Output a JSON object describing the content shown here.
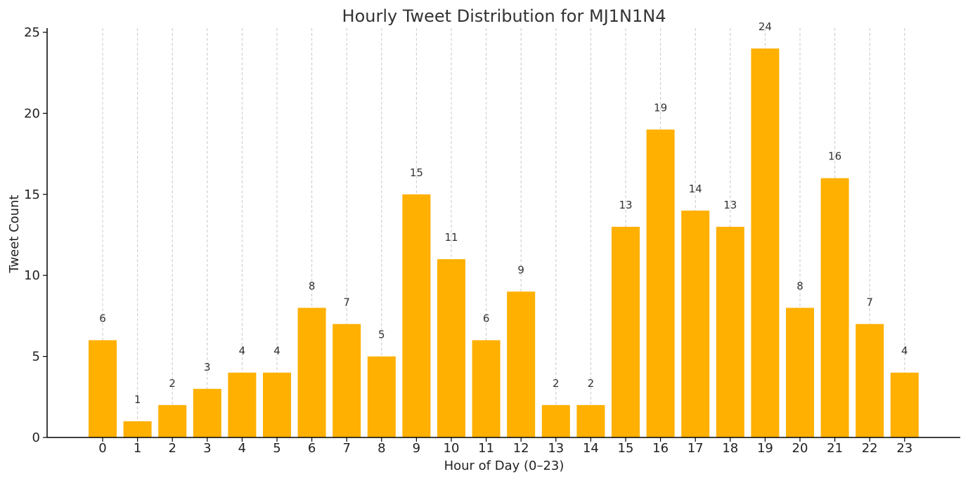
{
  "chart_data": {
    "type": "bar",
    "title": "Hourly Tweet Distribution for MJ1N1N4",
    "xlabel": "Hour of Day (0–23)",
    "ylabel": "Tweet Count",
    "categories": [
      "0",
      "1",
      "2",
      "3",
      "4",
      "5",
      "6",
      "7",
      "8",
      "9",
      "10",
      "11",
      "12",
      "13",
      "14",
      "15",
      "16",
      "17",
      "18",
      "19",
      "20",
      "21",
      "22",
      "23"
    ],
    "values": [
      6,
      1,
      2,
      3,
      4,
      4,
      8,
      7,
      5,
      15,
      11,
      6,
      9,
      2,
      2,
      13,
      19,
      14,
      13,
      24,
      8,
      16,
      7,
      4
    ],
    "ylim": [
      0,
      25
    ],
    "yticks": [
      0,
      5,
      10,
      15,
      20,
      25
    ],
    "grid": "vertical-dashed",
    "colors": {
      "bar": "#FFB000",
      "grid": "#c8c8c8",
      "axis": "#000000"
    }
  }
}
